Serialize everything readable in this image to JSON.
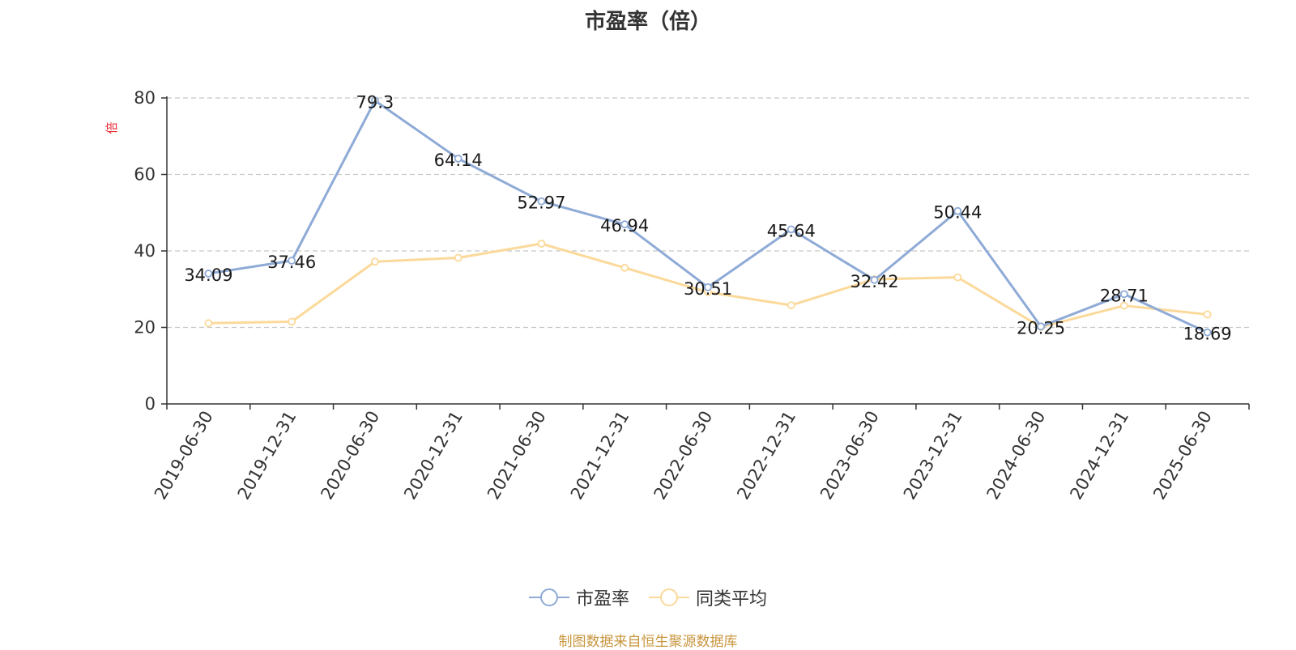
{
  "chart_data": {
    "type": "line",
    "title": "市盈率（倍）",
    "ylabel": "倍",
    "categories": [
      "2019-06-30",
      "2019-12-31",
      "2020-06-30",
      "2020-12-31",
      "2021-06-30",
      "2021-12-31",
      "2022-06-30",
      "2022-12-31",
      "2023-06-30",
      "2023-12-31",
      "2024-06-30",
      "2024-12-31",
      "2025-06-30"
    ],
    "ylim": [
      0,
      80
    ],
    "yticks": [
      0,
      20,
      40,
      60,
      80
    ],
    "grid": "horizontal dashed",
    "legend_position": "bottom-center",
    "series": [
      {
        "name": "市盈率",
        "color": "#8eaad6",
        "values": [
          34.09,
          37.46,
          79.3,
          64.14,
          52.97,
          46.94,
          30.51,
          45.64,
          32.42,
          50.44,
          20.25,
          28.71,
          18.69
        ],
        "labels": [
          "34.09",
          "37.46",
          "79.3",
          "64.14",
          "52.97",
          "46.94",
          "30.51",
          "45.64",
          "32.42",
          "50.44",
          "20.25",
          "28.71",
          "18.69"
        ]
      },
      {
        "name": "同类平均",
        "color": "#fbd99a",
        "values": [
          21.1,
          21.5,
          37.2,
          38.2,
          41.9,
          35.6,
          29.2,
          25.8,
          32.6,
          33.1,
          20.1,
          25.7,
          23.4
        ]
      }
    ]
  },
  "footer": {
    "source": "制图数据来自恒生聚源数据库"
  }
}
